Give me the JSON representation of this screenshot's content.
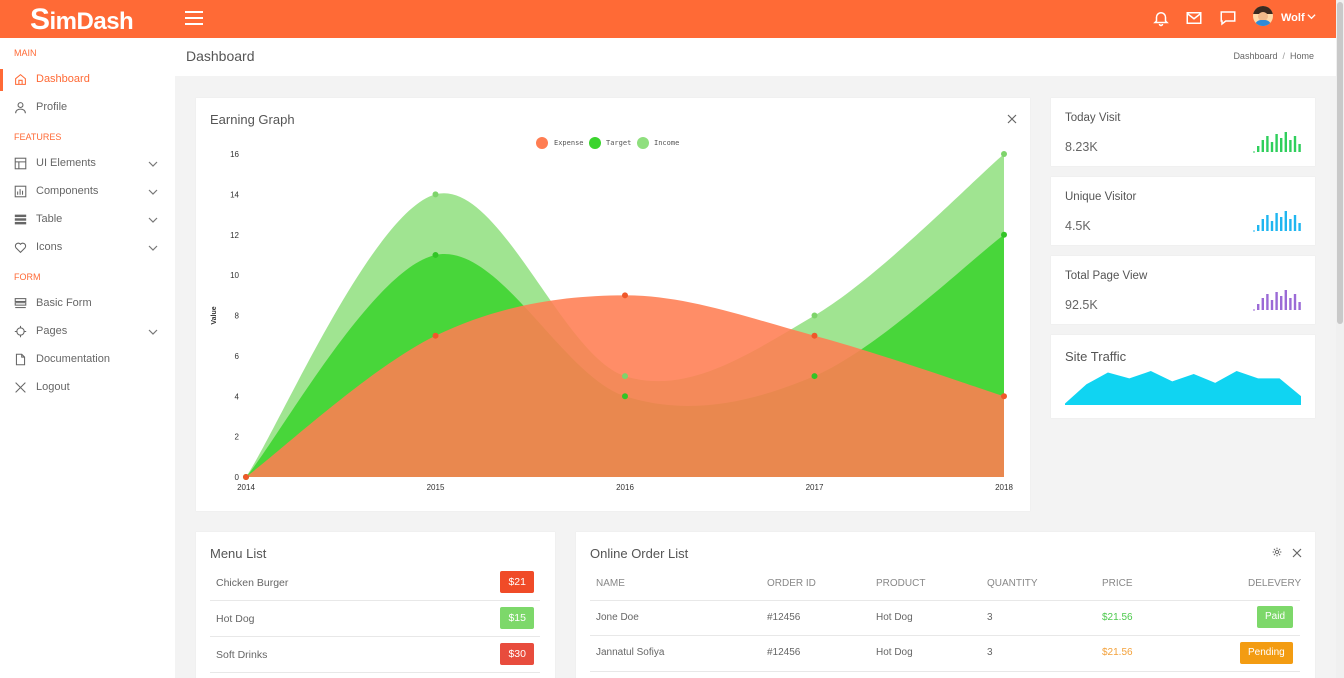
{
  "app": {
    "logo": "SimDash",
    "logo_initial": "S",
    "logo_rest": "imDash",
    "accent": "#ff6a36"
  },
  "topbar": {
    "user_name": "Wolf"
  },
  "sidebar": {
    "sections": [
      {
        "label": "MAIN"
      },
      {
        "label": "FEATURES"
      },
      {
        "label": "FORM"
      }
    ],
    "items": [
      {
        "label": "Dashboard",
        "icon": "home-icon",
        "active": true
      },
      {
        "label": "Profile",
        "icon": "user-icon"
      },
      {
        "label": "UI Elements",
        "icon": "layout-icon",
        "has_submenu": true
      },
      {
        "label": "Components",
        "icon": "components-icon",
        "has_submenu": true
      },
      {
        "label": "Table",
        "icon": "table-icon",
        "has_submenu": true
      },
      {
        "label": "Icons",
        "icon": "heart-icon",
        "has_submenu": true
      },
      {
        "label": "Basic Form",
        "icon": "form-icon"
      },
      {
        "label": "Pages",
        "icon": "pages-icon",
        "has_submenu": true
      },
      {
        "label": "Documentation",
        "icon": "document-icon"
      },
      {
        "label": "Logout",
        "icon": "logout-icon"
      }
    ]
  },
  "page": {
    "title": "Dashboard",
    "breadcrumb": [
      "Dashboard",
      "Home"
    ],
    "breadcrumb_sep": "/"
  },
  "earning": {
    "title": "Earning Graph"
  },
  "stats": [
    {
      "title": "Today Visit",
      "value": "8.23K",
      "color": "#2fcf5c",
      "bars": [
        3,
        6,
        8,
        5,
        9,
        7,
        10,
        6,
        8,
        4
      ]
    },
    {
      "title": "Unique Visitor",
      "value": "4.5K",
      "color": "#1fb6f0",
      "bars": [
        3,
        6,
        8,
        5,
        9,
        7,
        10,
        6,
        8,
        4
      ]
    },
    {
      "title": "Total Page View",
      "value": "92.5K",
      "color": "#9b6ad6",
      "bars": [
        3,
        6,
        8,
        5,
        9,
        7,
        10,
        6,
        8,
        4
      ]
    },
    {
      "title": "Site Traffic",
      "color": "#10d4f2",
      "series": [
        1,
        14,
        22,
        18,
        23,
        16,
        21,
        15,
        23,
        18,
        18,
        6
      ]
    }
  ],
  "menu_list": {
    "title": "Menu List",
    "items": [
      {
        "name": "Chicken Burger",
        "price": "$21",
        "color": "#f04b28"
      },
      {
        "name": "Hot Dog",
        "price": "$15",
        "color": "#7dd86a"
      },
      {
        "name": "Soft Drinks",
        "price": "$30",
        "color": "#e84c3d"
      }
    ]
  },
  "orders": {
    "title": "Online Order List",
    "columns": [
      "NAME",
      "ORDER ID",
      "PRODUCT",
      "QUANTITY",
      "PRICE",
      "DELEVERY"
    ],
    "rows": [
      {
        "name": "Jone Doe",
        "order_id": "#12456",
        "product": "Hot Dog",
        "quantity": "3",
        "price": "$21.56",
        "price_color": "#4cc94c",
        "status": "Paid",
        "status_color": "#7dd86a"
      },
      {
        "name": "Jannatul Sofiya",
        "order_id": "#12456",
        "product": "Hot Dog",
        "quantity": "3",
        "price": "$21.56",
        "price_color": "#f3a13a",
        "status": "Pending",
        "status_color": "#f39c12"
      }
    ]
  },
  "chart_data": {
    "type": "area",
    "title": "",
    "xlabel": "",
    "ylabel": "Value",
    "x": [
      "2014",
      "2015",
      "2016",
      "2017",
      "2018"
    ],
    "ylim": [
      0,
      16
    ],
    "yticks": [
      0,
      2,
      4,
      6,
      8,
      10,
      12,
      14,
      16
    ],
    "legend_position": "top-center",
    "series": [
      {
        "name": "Expense",
        "values": [
          0,
          7,
          9,
          7,
          4
        ],
        "color": "#ff7d52"
      },
      {
        "name": "Target",
        "values": [
          0,
          11,
          4,
          5,
          12
        ],
        "color": "#3bd42e"
      },
      {
        "name": "Income",
        "values": [
          0,
          14,
          5,
          8,
          16
        ],
        "color": "#8fdf7e"
      }
    ]
  }
}
